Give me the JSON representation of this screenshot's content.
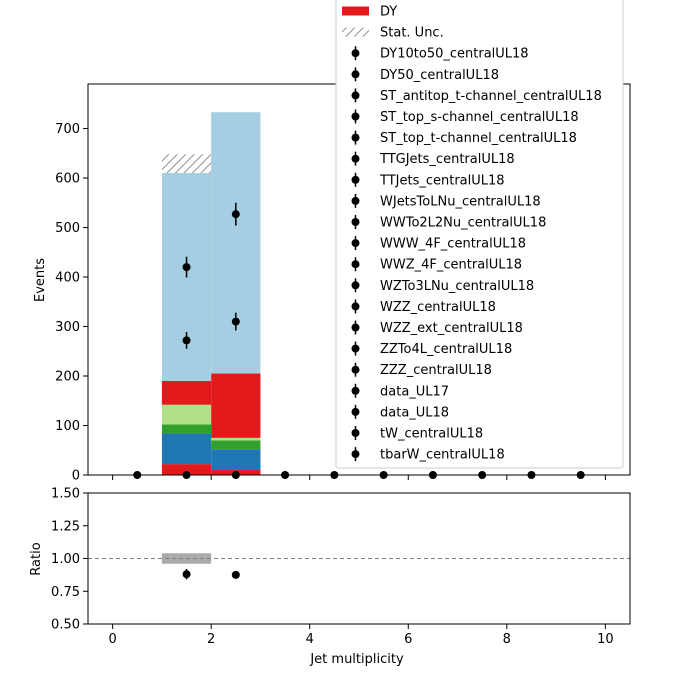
{
  "chart_data": [
    {
      "type": "bar",
      "stacked": true,
      "xlabel": "",
      "ylabel": "Events",
      "xlim": [
        -0.5,
        10.5
      ],
      "ylim": [
        0,
        790
      ],
      "yticks": [
        0,
        100,
        200,
        300,
        400,
        500,
        600,
        700
      ],
      "bin_edges": [
        0,
        1,
        2,
        3,
        4,
        5,
        6,
        7,
        8,
        9,
        10
      ],
      "stack_bins": [
        1,
        2
      ],
      "stack_layers": [
        {
          "color": "#e31a1c",
          "values": [
            22,
            10
          ]
        },
        {
          "color": "#1f78b4",
          "values": [
            62,
            42
          ]
        },
        {
          "color": "#33a02c",
          "values": [
            18,
            18
          ]
        },
        {
          "color": "#b2df8a",
          "values": [
            40,
            5
          ]
        },
        {
          "color": "#e31a1c",
          "values": [
            48,
            130
          ]
        },
        {
          "color": "#a6cee3",
          "values": [
            420,
            528
          ]
        }
      ],
      "stat_unc": [
        {
          "bin": 1,
          "low": 610,
          "high": 648
        },
        {
          "bin": 2,
          "low": 735,
          "high": 735
        }
      ],
      "data_points": [
        {
          "x": 0.5,
          "y": 0,
          "err": 0
        },
        {
          "x": 1.5,
          "y": 0,
          "err": 0
        },
        {
          "x": 1.5,
          "y": 272,
          "err": 17
        },
        {
          "x": 1.5,
          "y": 420,
          "err": 21
        },
        {
          "x": 2.5,
          "y": 0,
          "err": 0
        },
        {
          "x": 2.5,
          "y": 310,
          "err": 18
        },
        {
          "x": 2.5,
          "y": 527,
          "err": 23
        },
        {
          "x": 3.5,
          "y": 0,
          "err": 0
        },
        {
          "x": 4.5,
          "y": 0,
          "err": 0
        },
        {
          "x": 5.5,
          "y": 0,
          "err": 0
        },
        {
          "x": 6.5,
          "y": 0,
          "err": 0
        },
        {
          "x": 7.5,
          "y": 0,
          "err": 0
        },
        {
          "x": 8.5,
          "y": 0,
          "err": 0
        },
        {
          "x": 9.5,
          "y": 0,
          "err": 0
        }
      ],
      "legend": {
        "placement": "top-right",
        "entries": [
          {
            "label": "DY",
            "kind": "fill",
            "color": "#e31a1c"
          },
          {
            "label": "Stat. Unc.",
            "kind": "hatch"
          },
          {
            "label": "DY10to50_centralUL18",
            "kind": "marker"
          },
          {
            "label": "DY50_centralUL18",
            "kind": "marker"
          },
          {
            "label": "ST_antitop_t-channel_centralUL18",
            "kind": "marker"
          },
          {
            "label": "ST_top_s-channel_centralUL18",
            "kind": "marker"
          },
          {
            "label": "ST_top_t-channel_centralUL18",
            "kind": "marker"
          },
          {
            "label": "TTGJets_centralUL18",
            "kind": "marker"
          },
          {
            "label": "TTJets_centralUL18",
            "kind": "marker"
          },
          {
            "label": "WJetsToLNu_centralUL18",
            "kind": "marker"
          },
          {
            "label": "WWTo2L2Nu_centralUL18",
            "kind": "marker"
          },
          {
            "label": "WWW_4F_centralUL18",
            "kind": "marker"
          },
          {
            "label": "WWZ_4F_centralUL18",
            "kind": "marker"
          },
          {
            "label": "WZTo3LNu_centralUL18",
            "kind": "marker"
          },
          {
            "label": "WZZ_centralUL18",
            "kind": "marker"
          },
          {
            "label": "WZZ_ext_centralUL18",
            "kind": "marker"
          },
          {
            "label": "ZZTo4L_centralUL18",
            "kind": "marker"
          },
          {
            "label": "ZZZ_centralUL18",
            "kind": "marker"
          },
          {
            "label": "data_UL17",
            "kind": "marker"
          },
          {
            "label": "data_UL18",
            "kind": "marker"
          },
          {
            "label": "tW_centralUL18",
            "kind": "marker"
          },
          {
            "label": "tbarW_centralUL18",
            "kind": "marker"
          }
        ]
      }
    },
    {
      "type": "scatter",
      "xlabel": "Jet multiplicity",
      "ylabel": "Ratio",
      "xlim": [
        -0.5,
        10.5
      ],
      "ylim": [
        0.5,
        1.5
      ],
      "xticks": [
        0,
        2,
        4,
        6,
        8,
        10
      ],
      "yticks": [
        "0.50",
        "0.75",
        "1.00",
        "1.25",
        "1.50"
      ],
      "reference_line": 1.0,
      "unc_band": {
        "x0": 1,
        "x1": 2,
        "low": 0.96,
        "high": 1.04
      },
      "points": [
        {
          "x": 1.5,
          "y": 0.88,
          "err": 0.04
        },
        {
          "x": 2.5,
          "y": 0.875,
          "err": 0.0
        }
      ]
    }
  ]
}
